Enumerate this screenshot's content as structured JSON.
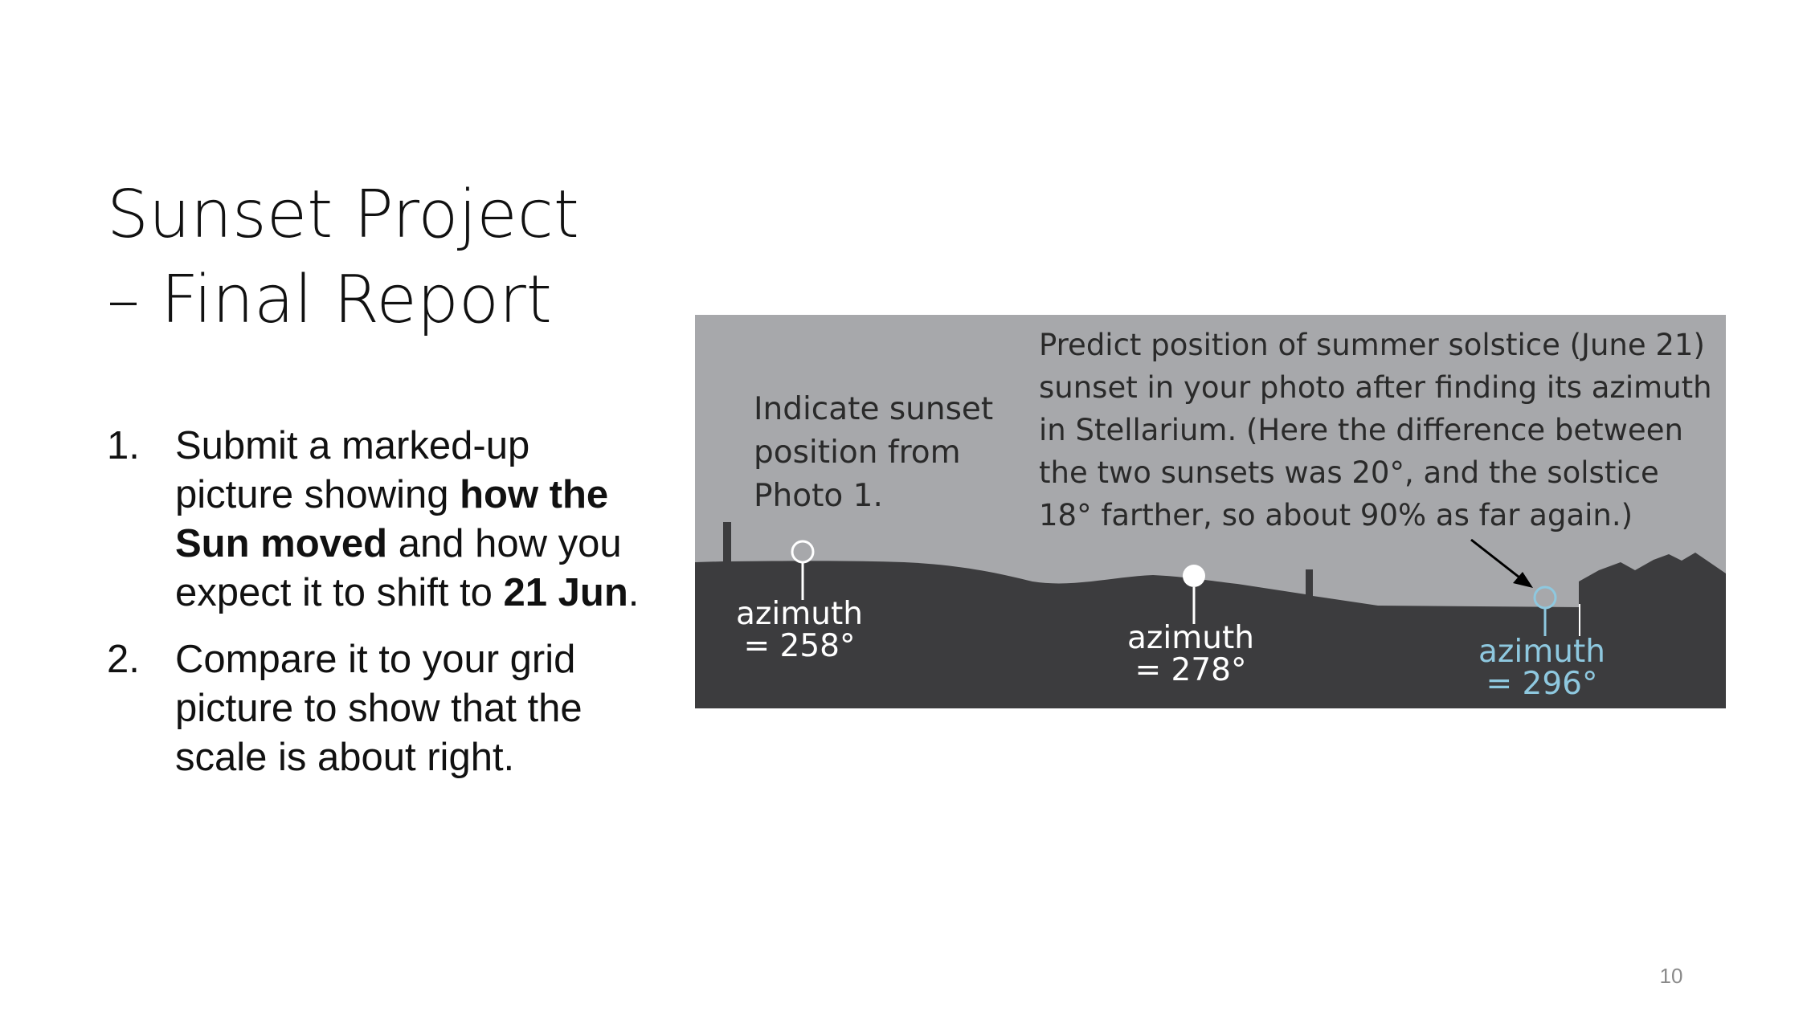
{
  "slide": {
    "title_line1": "Sunset Project",
    "title_line2": "– Final Report",
    "items": [
      {
        "number": "1.",
        "t1": "Submit a marked-up picture showing ",
        "b1": "how the Sun moved",
        "t2": " and how you expect it to shift to ",
        "b2": "21 Jun",
        "t3": "."
      },
      {
        "number": "2.",
        "text": "Compare it to your grid picture to show that the scale is about right."
      }
    ],
    "page_number": "10"
  },
  "figure": {
    "indicate_lines": [
      "Indicate sunset",
      "position from",
      "Photo 1."
    ],
    "predict_lines": [
      "Predict position of summer solstice (June 21)",
      "sunset in your photo after finding its azimuth",
      "in Stellarium. (Here the difference between",
      "the two sunsets was 20°, and the solstice",
      "18° farther, so about 90% as far again.)"
    ],
    "markers": [
      {
        "label": "azimuth",
        "value": "= 258°"
      },
      {
        "label": "azimuth",
        "value": "= 278°"
      },
      {
        "label": "azimuth",
        "value": "= 296°"
      }
    ],
    "colors": {
      "sky": "#a7a8ab",
      "ground": "#3c3c3e",
      "highlight": "#8ec8df",
      "marker": "#ffffff"
    }
  }
}
